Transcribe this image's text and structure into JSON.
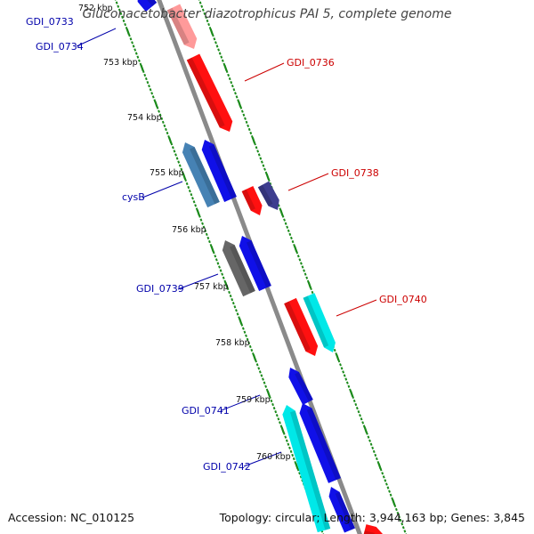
{
  "title": "Gluconacetobacter diazotrophicus PAI 5, complete genome",
  "footer": {
    "accession": "Accession: NC_010125",
    "summary": "Topology: circular; Length: 3,944,163 bp; Genes: 3,845"
  },
  "colors": {
    "backbone": "#8a8a8a",
    "tick": "#1a8a1a",
    "label_blue": "#0000aa",
    "label_red": "#cc0000",
    "kbp_text": "#111111"
  },
  "scale_marks": [
    {
      "label": "752 kbp"
    },
    {
      "label": "753 kbp"
    },
    {
      "label": "754 kbp"
    },
    {
      "label": "755 kbp"
    },
    {
      "label": "756 kbp"
    },
    {
      "label": "757 kbp"
    },
    {
      "label": "758 kbp"
    },
    {
      "label": "759 kbp"
    },
    {
      "label": "760 kbp"
    }
  ],
  "gene_labels": [
    {
      "name": "GDI_0733",
      "color": "blue"
    },
    {
      "name": "GDI_0734",
      "color": "blue"
    },
    {
      "name": "GDI_0736",
      "color": "red"
    },
    {
      "name": "GDI_0738",
      "color": "red"
    },
    {
      "name": "cysB",
      "color": "blue"
    },
    {
      "name": "GDI_0739",
      "color": "blue"
    },
    {
      "name": "GDI_0740",
      "color": "red"
    },
    {
      "name": "GDI_0741",
      "color": "blue"
    },
    {
      "name": "GDI_0742",
      "color": "blue"
    }
  ],
  "features": [
    {
      "id": "f-top-blue",
      "color": "#1010e8",
      "strand": "reverse"
    },
    {
      "id": "f-top-pink",
      "color": "#ff9a9a",
      "strand": "forward"
    },
    {
      "id": "f-0736",
      "color": "#ff1010",
      "strand": "forward"
    },
    {
      "id": "f-cysB",
      "color": "#4682b4",
      "strand": "reverse"
    },
    {
      "id": "f-blue-2",
      "color": "#1010e8",
      "strand": "reverse"
    },
    {
      "id": "f-0738-red",
      "color": "#ff1010",
      "strand": "forward"
    },
    {
      "id": "f-0738-purple",
      "color": "#3d3d8f",
      "strand": "forward"
    },
    {
      "id": "f-0739-gray",
      "color": "#666666",
      "strand": "reverse"
    },
    {
      "id": "f-blue-3",
      "color": "#1010e8",
      "strand": "reverse"
    },
    {
      "id": "f-0740-red",
      "color": "#ff1010",
      "strand": "forward"
    },
    {
      "id": "f-0740-cyan",
      "color": "#00e8e8",
      "strand": "forward"
    },
    {
      "id": "f-0741-blue",
      "color": "#1010e8",
      "strand": "reverse"
    },
    {
      "id": "f-0742-cyan",
      "color": "#00e8e8",
      "strand": "reverse"
    },
    {
      "id": "f-blue-4",
      "color": "#1010e8",
      "strand": "reverse"
    },
    {
      "id": "f-blue-5",
      "color": "#1010e8",
      "strand": "reverse"
    },
    {
      "id": "f-bottom-red",
      "color": "#ff1010",
      "strand": "forward"
    }
  ]
}
